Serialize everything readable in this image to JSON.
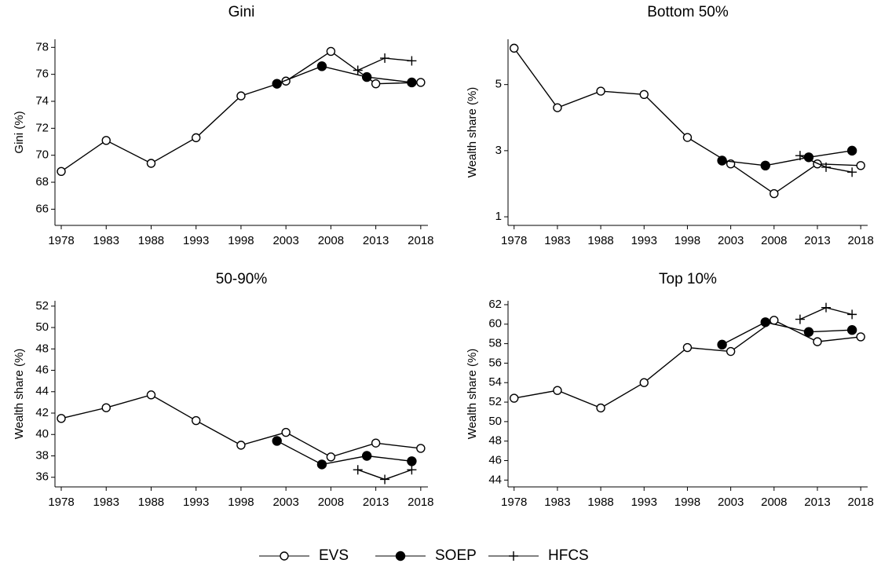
{
  "chart_data": [
    {
      "type": "line",
      "title": "Gini",
      "y_label": "Gini (%)",
      "xlim": [
        1977.3,
        2018.8
      ],
      "xticks": [
        1978,
        1983,
        1988,
        1993,
        1998,
        2003,
        2008,
        2013,
        2018
      ],
      "ylim": [
        64.8,
        78.6
      ],
      "yticks": [
        66,
        68,
        70,
        72,
        74,
        76,
        78
      ],
      "series": [
        {
          "name": "EVS",
          "color": "#000000",
          "marker": "open-circle",
          "x": [
            1978,
            1983,
            1988,
            1993,
            1998,
            2003,
            2008,
            2013,
            2018
          ],
          "values": [
            68.8,
            71.1,
            69.4,
            71.3,
            74.4,
            75.5,
            77.7,
            75.3,
            75.4
          ]
        },
        {
          "name": "SOEP",
          "color": "#000000",
          "marker": "filled-circle",
          "x": [
            2002,
            2007,
            2012,
            2017
          ],
          "values": [
            75.3,
            76.6,
            75.8,
            75.4
          ]
        },
        {
          "name": "HFCS",
          "color": "#000000",
          "marker": "plus",
          "x": [
            2011,
            2014,
            2017
          ],
          "values": [
            76.3,
            77.2,
            77.0
          ]
        }
      ]
    },
    {
      "type": "line",
      "title": "Bottom 50%",
      "y_label": "Wealth share (%)",
      "xlim": [
        1977.3,
        2018.8
      ],
      "xticks": [
        1978,
        1983,
        1988,
        1993,
        1998,
        2003,
        2008,
        2013,
        2018
      ],
      "ylim": [
        0.74,
        6.37
      ],
      "yticks": [
        1,
        3,
        5
      ],
      "series": [
        {
          "name": "EVS",
          "color": "#000000",
          "marker": "open-circle",
          "x": [
            1978,
            1983,
            1988,
            1993,
            1998,
            2003,
            2008,
            2013,
            2018
          ],
          "values": [
            6.1,
            4.3,
            4.8,
            4.7,
            3.4,
            2.6,
            1.7,
            2.6,
            2.55
          ]
        },
        {
          "name": "SOEP",
          "color": "#000000",
          "marker": "filled-circle",
          "x": [
            2002,
            2007,
            2012,
            2017
          ],
          "values": [
            2.7,
            2.55,
            2.8,
            3.0
          ]
        },
        {
          "name": "HFCS",
          "color": "#000000",
          "marker": "plus",
          "x": [
            2011,
            2014,
            2017
          ],
          "values": [
            2.85,
            2.5,
            2.35
          ]
        }
      ]
    },
    {
      "type": "line",
      "title": "50-90%",
      "y_label": "Wealth share (%)",
      "xlim": [
        1977.3,
        2018.8
      ],
      "xticks": [
        1978,
        1983,
        1988,
        1993,
        1998,
        2003,
        2008,
        2013,
        2018
      ],
      "ylim": [
        35.1,
        52.5
      ],
      "yticks": [
        36,
        38,
        40,
        42,
        44,
        46,
        48,
        50,
        52
      ],
      "series": [
        {
          "name": "EVS",
          "color": "#000000",
          "marker": "open-circle",
          "x": [
            1978,
            1983,
            1988,
            1993,
            1998,
            2003,
            2008,
            2013,
            2018
          ],
          "values": [
            41.5,
            42.5,
            43.7,
            41.3,
            39.0,
            40.2,
            37.9,
            39.2,
            38.7
          ]
        },
        {
          "name": "SOEP",
          "color": "#000000",
          "marker": "filled-circle",
          "x": [
            2002,
            2007,
            2012,
            2017
          ],
          "values": [
            39.4,
            37.2,
            38.0,
            37.5
          ]
        },
        {
          "name": "HFCS",
          "color": "#000000",
          "marker": "plus",
          "x": [
            2011,
            2014,
            2017
          ],
          "values": [
            36.7,
            35.8,
            36.7
          ]
        }
      ]
    },
    {
      "type": "line",
      "title": "Top 10%",
      "y_label": "Wealth share (%)",
      "xlim": [
        1977.3,
        2018.8
      ],
      "xticks": [
        1978,
        1983,
        1988,
        1993,
        1998,
        2003,
        2008,
        2013,
        2018
      ],
      "ylim": [
        43.3,
        62.4
      ],
      "yticks": [
        44,
        46,
        48,
        50,
        52,
        54,
        56,
        58,
        60,
        62
      ],
      "series": [
        {
          "name": "EVS",
          "color": "#000000",
          "marker": "open-circle",
          "x": [
            1978,
            1983,
            1988,
            1993,
            1998,
            2003,
            2008,
            2013,
            2018
          ],
          "values": [
            52.4,
            53.2,
            51.4,
            54.0,
            57.6,
            57.2,
            60.4,
            58.2,
            58.7
          ]
        },
        {
          "name": "SOEP",
          "color": "#000000",
          "marker": "filled-circle",
          "x": [
            2002,
            2007,
            2012,
            2017
          ],
          "values": [
            57.9,
            60.2,
            59.2,
            59.4
          ]
        },
        {
          "name": "HFCS",
          "color": "#000000",
          "marker": "plus",
          "x": [
            2011,
            2014,
            2017
          ],
          "values": [
            60.5,
            61.7,
            61.0
          ]
        }
      ]
    }
  ]
}
